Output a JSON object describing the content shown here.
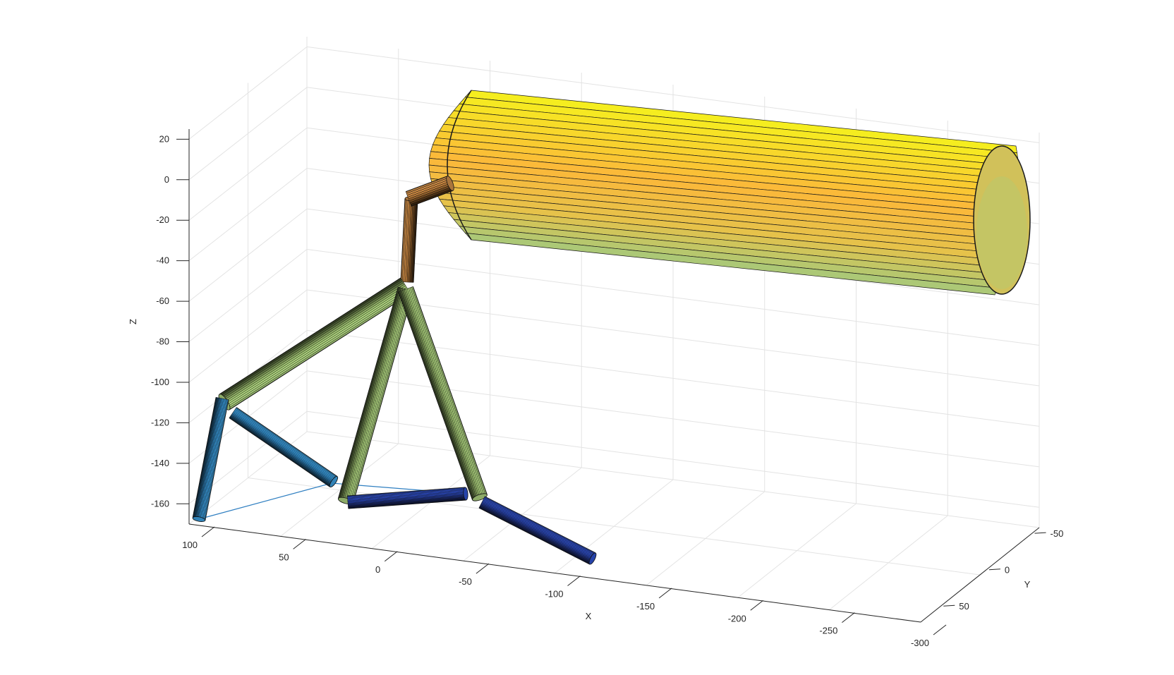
{
  "chart_data": {
    "type": "3d-surface",
    "title": "",
    "xlabel": "X",
    "ylabel": "Y",
    "zlabel": "Z",
    "grid": true,
    "xlim": [
      -300,
      100
    ],
    "ylim": [
      -50,
      50
    ],
    "zlim": [
      -170,
      25
    ],
    "x_ticks": [
      "100",
      "50",
      "0",
      "-50",
      "-100",
      "-150",
      "-200",
      "-250",
      "-300"
    ],
    "y_ticks": [
      "-50",
      "0",
      "50"
    ],
    "z_ticks": [
      "20",
      "0",
      "-20",
      "-40",
      "-60",
      "-80",
      "-100",
      "-120",
      "-140",
      "-160"
    ],
    "colors": {
      "yellow": "#f5f01e",
      "orange": "#fbb83a",
      "green": "#a6c97a",
      "light_blue": "#3a9ad8",
      "dark_blue": "#2d4fc8",
      "brown": "#c88a46",
      "thin_line": "#2f7fc1"
    },
    "objects": [
      {
        "name": "payload-cylinder",
        "shape": "cylinder",
        "color": "yellow"
      },
      {
        "name": "neck-vertical",
        "shape": "cylinder",
        "color": "brown"
      },
      {
        "name": "neck-bend",
        "shape": "cylinder",
        "color": "brown"
      },
      {
        "name": "leg-1-upper",
        "shape": "cylinder",
        "color": "green"
      },
      {
        "name": "leg-1-lower-a",
        "shape": "cylinder",
        "color": "light_blue"
      },
      {
        "name": "leg-1-lower-b",
        "shape": "cylinder",
        "color": "light_blue"
      },
      {
        "name": "leg-2-upper",
        "shape": "cylinder",
        "color": "green"
      },
      {
        "name": "leg-2-foot",
        "shape": "cylinder",
        "color": "dark_blue"
      },
      {
        "name": "leg-3-upper",
        "shape": "cylinder",
        "color": "green"
      },
      {
        "name": "leg-3-foot",
        "shape": "cylinder",
        "color": "dark_blue"
      },
      {
        "name": "support-polygon",
        "shape": "line",
        "color": "thin_line"
      }
    ]
  }
}
